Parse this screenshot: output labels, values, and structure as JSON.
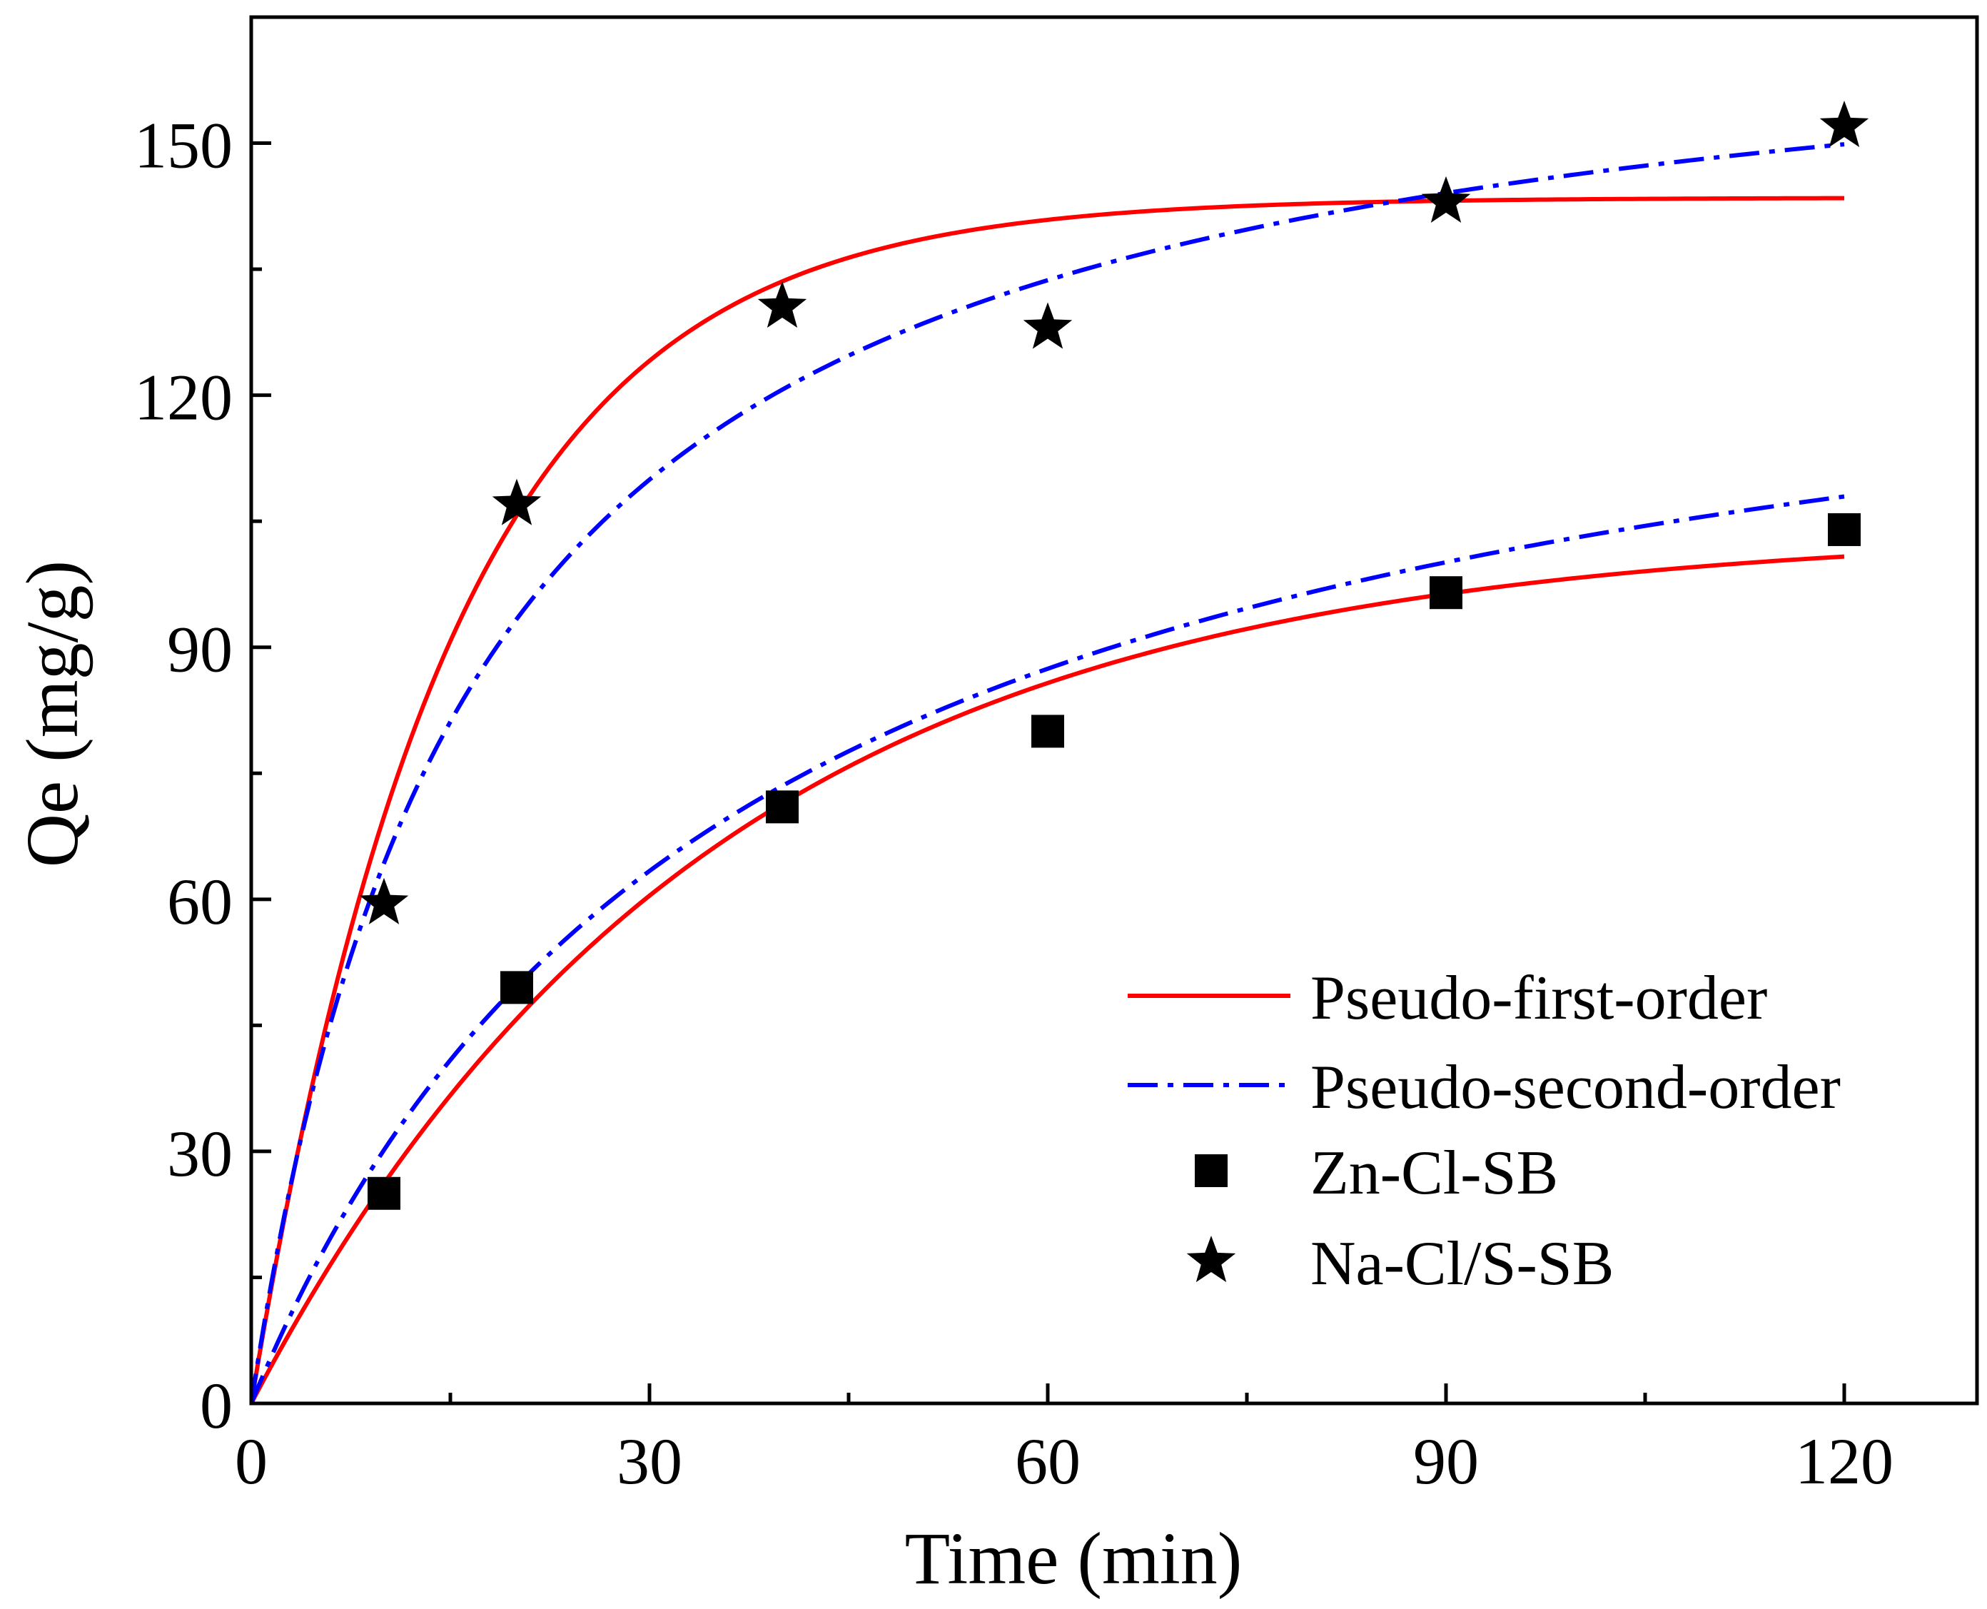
{
  "chart_data": {
    "type": "scatter",
    "title": "",
    "xlabel": "Time (min)",
    "ylabel": "Qe (mg/g)",
    "xlim": [
      0,
      130
    ],
    "ylim": [
      0,
      165
    ],
    "xticks": [
      0,
      30,
      60,
      90,
      120
    ],
    "yticks": [
      0,
      30,
      60,
      90,
      120,
      150
    ],
    "xtick_labels": [
      "0",
      "30",
      "60",
      "90",
      "120"
    ],
    "ytick_labels": [
      "0",
      "30",
      "60",
      "90",
      "120",
      "150"
    ],
    "grid": false,
    "legend_position": "bottom-right",
    "series": [
      {
        "name": "Zn-Cl-SB",
        "kind": "points",
        "marker": "square",
        "color": "#000000",
        "x": [
          10,
          20,
          40,
          60,
          90,
          120
        ],
        "y": [
          25,
          49.5,
          71,
          80,
          96.5,
          104
        ]
      },
      {
        "name": "Na-Cl/S-SB",
        "kind": "points",
        "marker": "star",
        "color": "#000000",
        "x": [
          10,
          20,
          40,
          60,
          90,
          120
        ],
        "y": [
          59.5,
          107,
          130.5,
          128,
          143,
          152
        ]
      }
    ],
    "fits": [
      {
        "name": "Pseudo-first-order",
        "color": "#ff0000",
        "dash": "solid",
        "curves": [
          {
            "for": "Na-Cl/S-SB",
            "model": "pfo",
            "qe": 143.5,
            "k": 0.0667
          },
          {
            "for": "Zn-Cl-SB",
            "model": "pfo",
            "qe": 104,
            "k": 0.029
          }
        ]
      },
      {
        "name": "Pseudo-second-order",
        "color": "#0000ff",
        "dash": "dashdot",
        "curves": [
          {
            "for": "Na-Cl/S-SB",
            "model": "pso",
            "qe": 170.5,
            "k": 0.000355
          },
          {
            "for": "Zn-Cl-SB",
            "model": "pso",
            "qe": 141,
            "k": 0.000193
          }
        ]
      }
    ],
    "legend": [
      {
        "label": "Pseudo-first-order",
        "kind": "line",
        "color": "#ff0000",
        "dash": "solid"
      },
      {
        "label": "Pseudo-second-order",
        "kind": "line",
        "color": "#0000ff",
        "dash": "dashdot"
      },
      {
        "label": "Zn-Cl-SB",
        "kind": "marker",
        "marker": "square",
        "color": "#000000"
      },
      {
        "label": "Na-Cl/S-SB",
        "kind": "marker",
        "marker": "star",
        "color": "#000000"
      }
    ]
  }
}
